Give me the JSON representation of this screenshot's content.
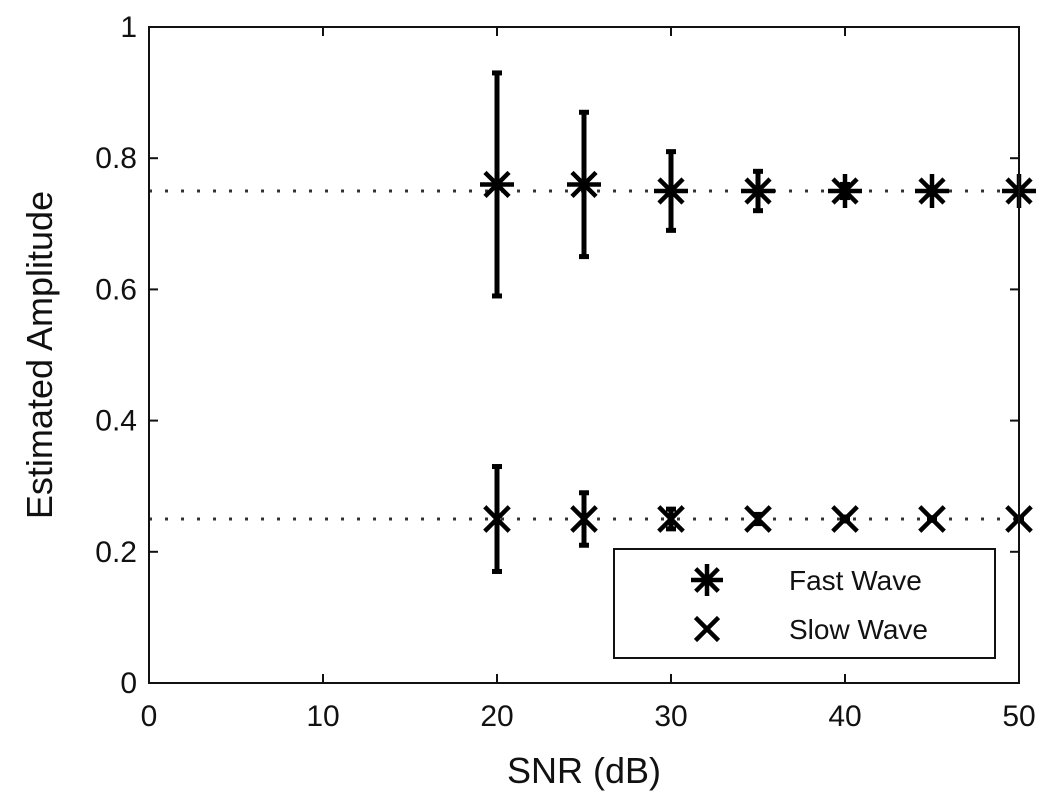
{
  "chart_data": {
    "type": "scatter",
    "title": "",
    "xlabel": "SNR (dB)",
    "ylabel": "Estimated Amplitude",
    "xlim": [
      0,
      50
    ],
    "ylim": [
      0,
      1
    ],
    "xticks": [
      "0",
      "10",
      "20",
      "30",
      "40",
      "50"
    ],
    "yticks": [
      "0",
      "0.2",
      "0.4",
      "0.6",
      "0.8",
      "1"
    ],
    "grid": false,
    "legend_position": "bottom-right",
    "reference_lines": [
      0.75,
      0.25
    ],
    "series": [
      {
        "name": "Fast Wave",
        "marker": "asterisk",
        "x": [
          20,
          25,
          30,
          35,
          40,
          45,
          50
        ],
        "y": [
          0.76,
          0.76,
          0.75,
          0.75,
          0.75,
          0.75,
          0.75
        ],
        "err_low": [
          0.59,
          0.65,
          0.69,
          0.72,
          0.74,
          0.745,
          0.745
        ],
        "err_high": [
          0.93,
          0.87,
          0.81,
          0.78,
          0.76,
          0.755,
          0.755
        ]
      },
      {
        "name": "Slow Wave",
        "marker": "x",
        "x": [
          20,
          25,
          30,
          35,
          40,
          45,
          50
        ],
        "y": [
          0.25,
          0.25,
          0.25,
          0.25,
          0.25,
          0.25,
          0.25
        ],
        "err_low": [
          0.17,
          0.21,
          0.235,
          0.243,
          0.247,
          0.248,
          0.249
        ],
        "err_high": [
          0.33,
          0.29,
          0.265,
          0.257,
          0.253,
          0.252,
          0.251
        ]
      }
    ],
    "colors": {
      "marks": "#000000",
      "reference": "#333333"
    }
  }
}
